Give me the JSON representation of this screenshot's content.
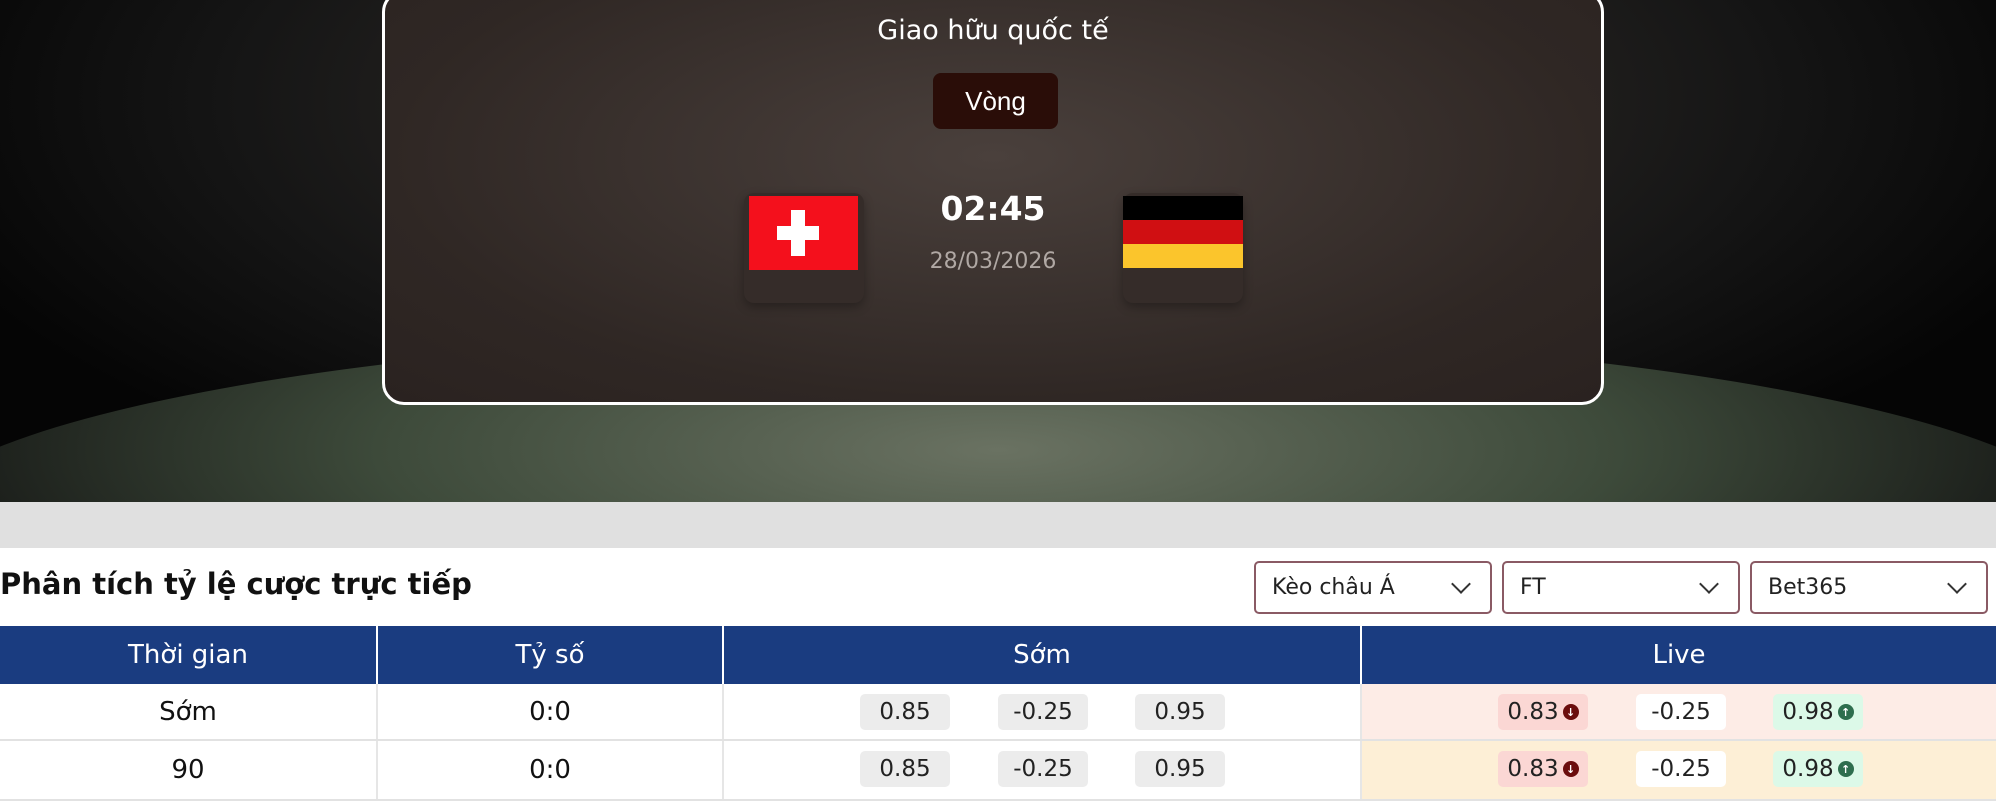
{
  "match": {
    "competition": "Giao hữu quốc tế",
    "round_label": "Vòng",
    "time": "02:45",
    "date": "28/03/2026",
    "home_flag": "switzerland-flag",
    "away_flag": "germany-flag"
  },
  "odds": {
    "title": "Phân tích tỷ lệ cược trực tiếp",
    "filters": [
      {
        "value": "Kèo châu Á"
      },
      {
        "value": "FT"
      },
      {
        "value": "Bet365"
      }
    ],
    "columns": [
      "Thời gian",
      "Tỷ số",
      "Sớm",
      "Live"
    ],
    "rows": [
      {
        "time": "Sớm",
        "score": "0:0",
        "early": [
          "0.85",
          "-0.25",
          "0.95"
        ],
        "live": [
          "0.83",
          "-0.25",
          "0.98"
        ],
        "live_bg": "#fdece6"
      },
      {
        "time": "90",
        "score": "0:0",
        "early": [
          "0.85",
          "-0.25",
          "0.95"
        ],
        "live": [
          "0.83",
          "-0.25",
          "0.98"
        ],
        "live_bg": "#fdefd6"
      }
    ],
    "colors": {
      "header": "#1a3c80",
      "down": "#fbd7d4",
      "up": "#dcf9e8",
      "down_icon": "#6b0d0d",
      "up_icon": "#2e6e4e"
    },
    "live_trend": [
      "down",
      "neutral",
      "up"
    ]
  }
}
